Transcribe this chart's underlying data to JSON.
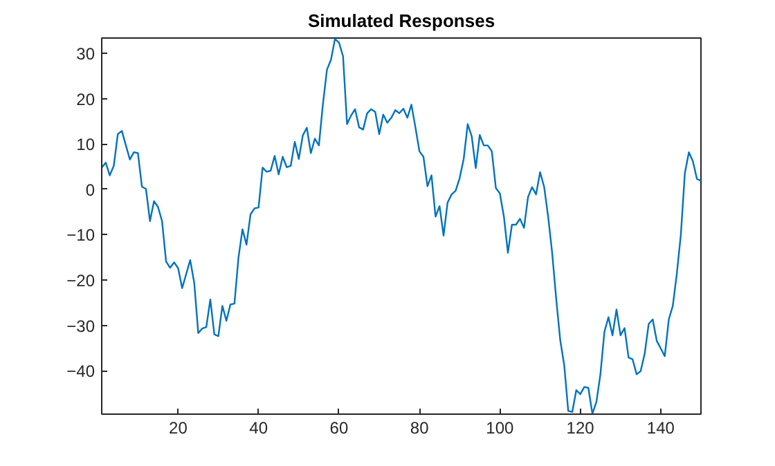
{
  "chart_data": {
    "type": "line",
    "title": "Simulated Responses",
    "x": [
      1,
      2,
      3,
      4,
      5,
      6,
      8,
      9,
      10,
      11,
      12,
      13,
      14,
      15,
      16,
      17,
      18,
      19,
      20,
      21,
      23,
      24,
      25,
      26,
      27,
      28,
      29,
      30,
      31,
      32,
      33,
      34,
      35,
      36,
      37,
      38,
      39,
      40,
      41,
      42,
      43,
      44,
      45,
      46,
      47,
      48,
      49,
      50,
      51,
      52,
      53,
      54,
      55,
      56,
      57,
      58,
      59,
      60,
      61,
      62,
      63,
      64,
      65,
      66,
      67,
      68,
      69,
      70,
      71,
      72,
      73,
      74,
      75,
      76,
      77,
      78,
      79,
      80,
      81,
      82,
      83,
      84,
      85,
      86,
      87,
      88,
      89,
      90,
      91,
      92,
      93,
      94,
      95,
      96,
      97,
      98,
      99,
      100,
      101,
      102,
      103,
      104,
      105,
      106,
      107,
      108,
      109,
      110,
      111,
      112,
      113,
      114,
      115,
      116,
      117,
      118,
      119,
      120,
      121,
      122,
      123,
      124,
      125,
      126,
      127,
      128,
      129,
      130,
      131,
      132,
      133,
      134,
      135,
      136,
      137,
      138,
      139,
      140,
      141,
      142,
      143,
      144,
      145,
      146,
      147,
      148,
      149,
      150
    ],
    "series": [
      {
        "color": "#0072bd",
        "values": [
          4.8,
          5.9,
          3.1,
          5.2,
          12.2,
          12.9,
          6.6,
          8.2,
          8,
          0.6,
          0.1,
          -7,
          -2.6,
          -3.9,
          -7,
          -15.9,
          -17.3,
          -16.1,
          -17.4,
          -21.8,
          -15.6,
          -20.6,
          -31.7,
          -30.7,
          -30.4,
          -24.3,
          -32,
          -32.4,
          -25.7,
          -29,
          -25.4,
          -25.2,
          -15.1,
          -8.8,
          -12.2,
          -5.5,
          -4.2,
          -4,
          4.8,
          3.9,
          4.1,
          7.4,
          3.3,
          7.2,
          4.9,
          5.2,
          10.5,
          6.7,
          11.9,
          13.6,
          8,
          11.2,
          9.7,
          18.8,
          26.4,
          28.6,
          33.2,
          32.4,
          29.4,
          14.4,
          16.3,
          17.7,
          13.7,
          13.2,
          16.8,
          17.7,
          17.1,
          12.2,
          16.5,
          14.7,
          15.8,
          17.5,
          16.8,
          17.8,
          15.8,
          18.7,
          13.7,
          8.4,
          7.2,
          0.7,
          3.1,
          -6,
          -3.7,
          -10.2,
          -2.9,
          -1.1,
          -0.3,
          2.5,
          6.7,
          14.4,
          11.7,
          4.7,
          12,
          9.7,
          9.7,
          8.4,
          0.3,
          -0.9,
          -6,
          -14,
          -7.8,
          -7.8,
          -6.5,
          -8.5,
          -1.7,
          0.5,
          -1.1,
          3.8,
          0.6,
          -6,
          -14,
          -24.1,
          -33.2,
          -38.8,
          -48.9,
          -49.1,
          -44.3,
          -45.2,
          -43.6,
          -43.8,
          -49.5,
          -46.9,
          -40.8,
          -31.4,
          -28.2,
          -32.2,
          -26.5,
          -32.2,
          -30.6,
          -37.1,
          -37.5,
          -40.8,
          -40.1,
          -36.3,
          -29.7,
          -28.7,
          -33.4,
          -35.1,
          -36.8,
          -28.7,
          -25.7,
          -18.6,
          -10,
          3.6,
          8.2,
          6.2,
          2.3,
          1.9
        ]
      }
    ],
    "xlim": [
      1,
      150
    ],
    "ylim": [
      -49.6,
      33.4
    ],
    "xticks": [
      20,
      40,
      60,
      80,
      100,
      120,
      140
    ],
    "yticks": [
      -40,
      -30,
      -20,
      -10,
      0,
      10,
      20,
      30
    ],
    "grid": false,
    "line_style": "solid",
    "marker": "none"
  }
}
